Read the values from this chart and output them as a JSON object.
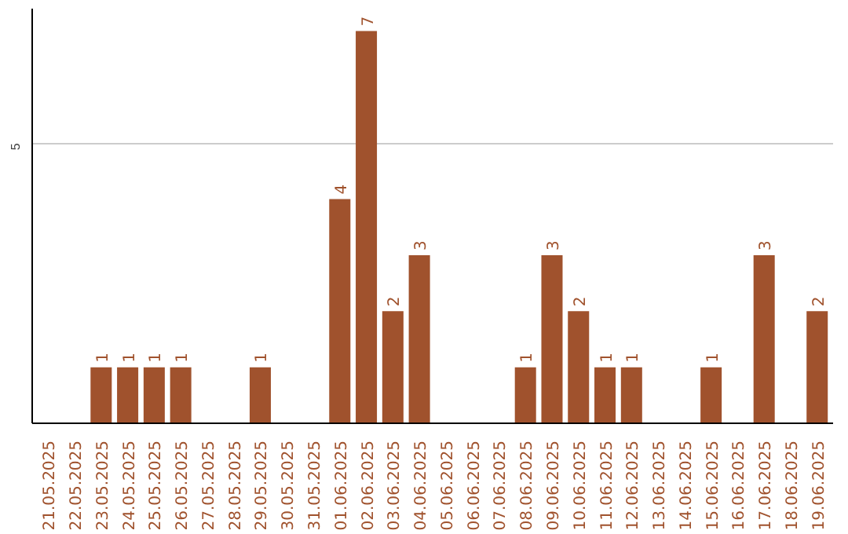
{
  "chart_data": {
    "type": "bar",
    "categories": [
      "21.05.2025",
      "22.05.2025",
      "23.05.2025",
      "24.05.2025",
      "25.05.2025",
      "26.05.2025",
      "27.05.2025",
      "28.05.2025",
      "29.05.2025",
      "30.05.2025",
      "31.05.2025",
      "01.06.2025",
      "02.06.2025",
      "03.06.2025",
      "04.06.2025",
      "05.06.2025",
      "06.06.2025",
      "07.06.2025",
      "08.06.2025",
      "09.06.2025",
      "10.06.2025",
      "11.06.2025",
      "12.06.2025",
      "13.06.2025",
      "14.06.2025",
      "15.06.2025",
      "16.06.2025",
      "17.06.2025",
      "18.06.2025",
      "19.06.2025"
    ],
    "values": [
      null,
      null,
      1,
      1,
      1,
      1,
      null,
      null,
      1,
      null,
      null,
      4,
      7,
      2,
      3,
      null,
      null,
      null,
      1,
      3,
      2,
      1,
      1,
      null,
      null,
      1,
      null,
      3,
      null,
      2
    ],
    "color": "#a0522d",
    "ylim": [
      0,
      7.4
    ],
    "yticks": [
      5
    ],
    "grid": "y",
    "data_labels": true
  }
}
